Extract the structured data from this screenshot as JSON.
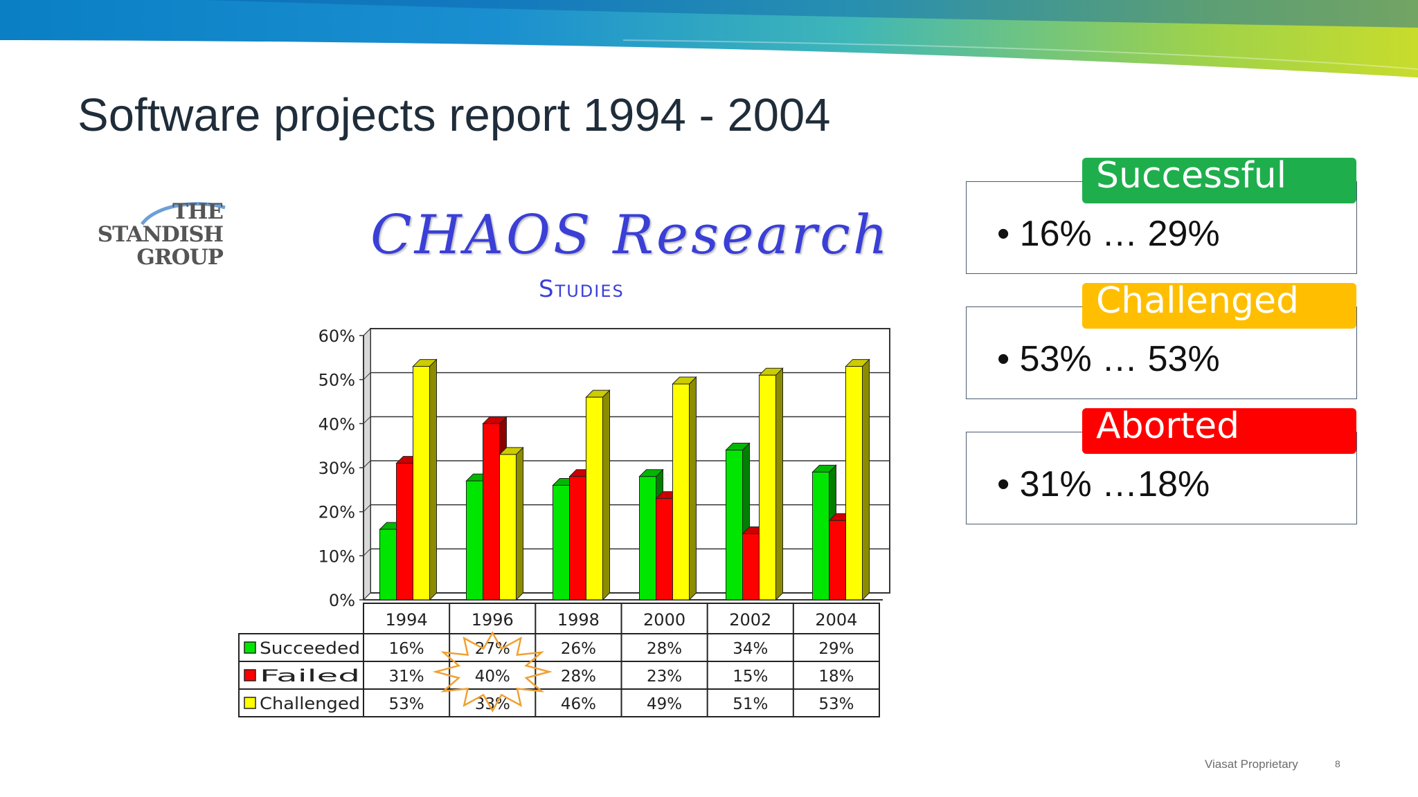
{
  "slide": {
    "title": "Software projects report 1994 - 2004",
    "footer": "Viasat Proprietary",
    "page_number": "8"
  },
  "logo": {
    "lines": [
      "THE",
      "STANDISH",
      "GROUP"
    ]
  },
  "chaos": {
    "title": "CHAOS Research",
    "subtitle": "Studies"
  },
  "categories": [
    {
      "header": "Successful",
      "text": "16% … 29%",
      "color": "#1fae4c"
    },
    {
      "header": "Challenged",
      "text": "53% … 53%",
      "color": "#ffbf00"
    },
    {
      "header": "Aborted",
      "text": "31% …18%",
      "color": "#ff0000"
    }
  ],
  "chart_data": {
    "type": "bar",
    "categories": [
      "1994",
      "1996",
      "1998",
      "2000",
      "2002",
      "2004"
    ],
    "series": [
      {
        "name": "Succeeded",
        "values": [
          16,
          27,
          26,
          28,
          34,
          29
        ],
        "labels": [
          "16%",
          "27%",
          "26%",
          "28%",
          "34%",
          "29%"
        ],
        "color": "#00e600"
      },
      {
        "name": "Failed",
        "values": [
          31,
          40,
          28,
          23,
          15,
          18
        ],
        "labels": [
          "31%",
          "40%",
          "28%",
          "23%",
          "15%",
          "18%"
        ],
        "color": "#ff0000"
      },
      {
        "name": "Challenged",
        "values": [
          53,
          33,
          46,
          49,
          51,
          53
        ],
        "labels": [
          "53%",
          "33%",
          "46%",
          "49%",
          "51%",
          "53%"
        ],
        "color": "#ffff00"
      }
    ],
    "yticks": [
      "0%",
      "10%",
      "20%",
      "30%",
      "40%",
      "50%",
      "60%"
    ],
    "ylim": [
      0,
      60
    ],
    "grid": true,
    "legend": "data-table"
  }
}
